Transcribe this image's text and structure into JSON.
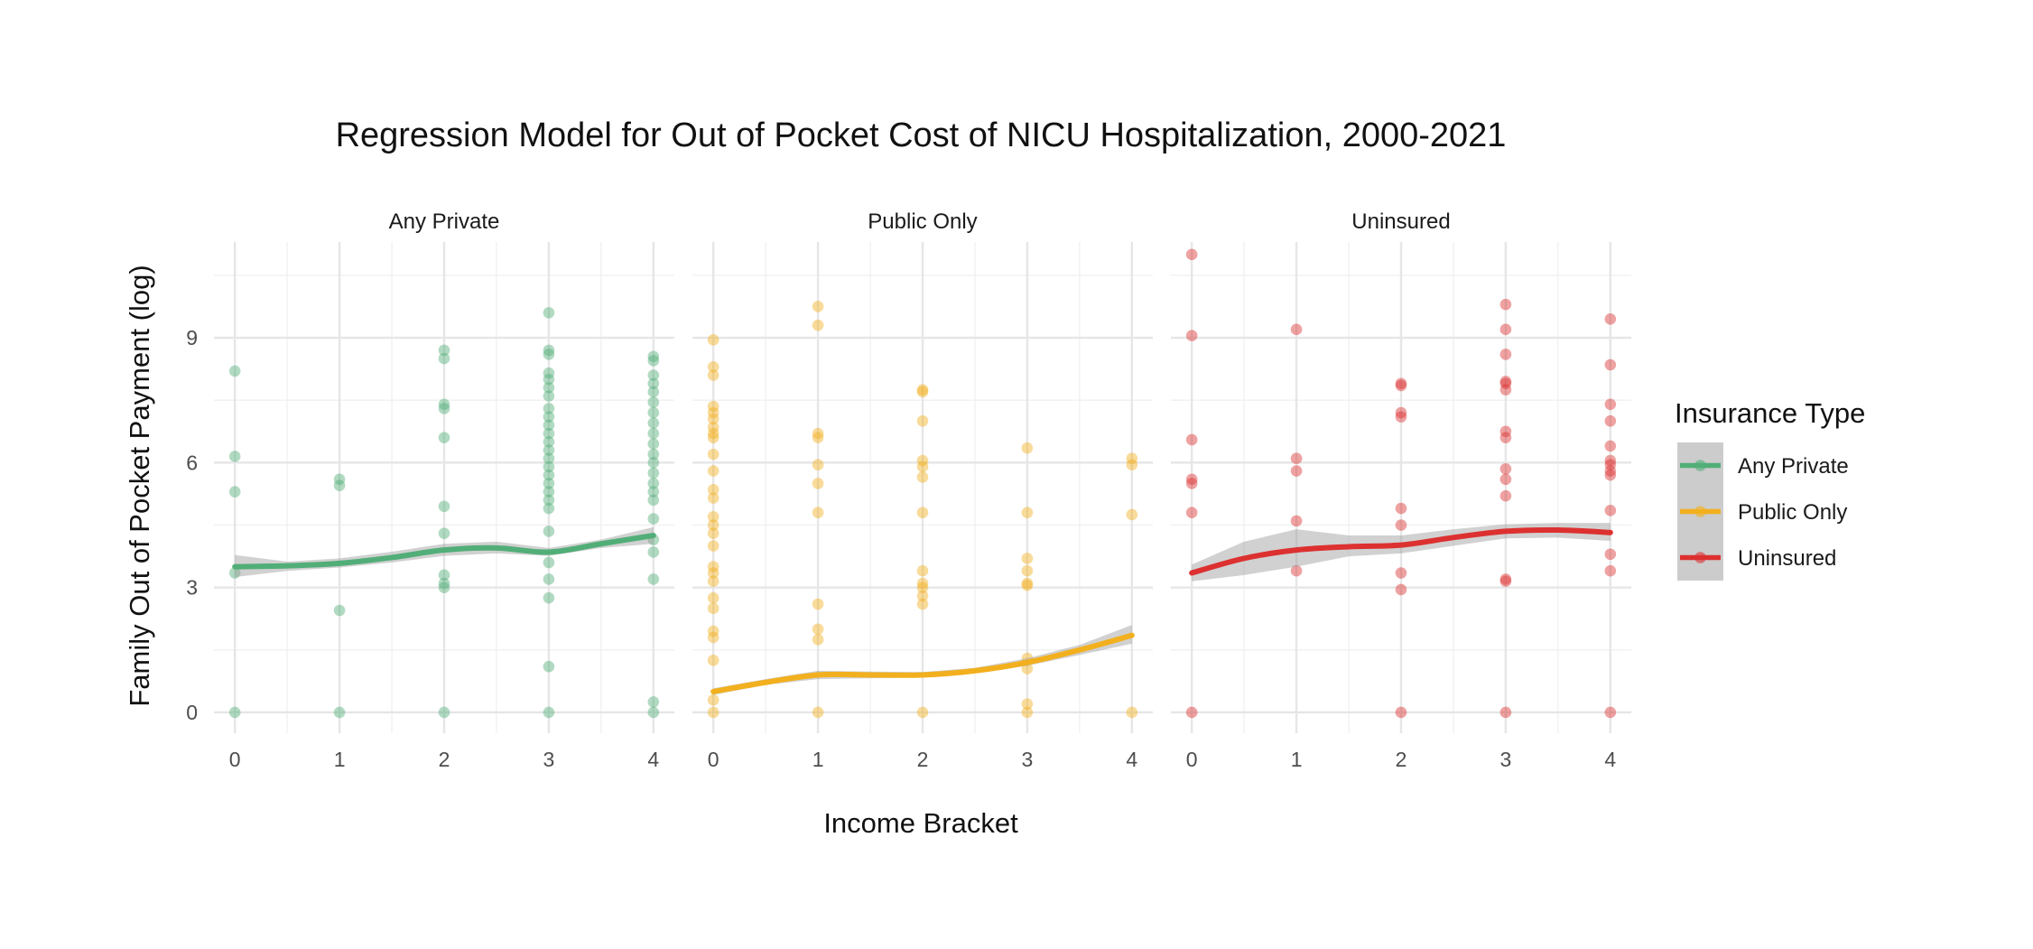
{
  "chart_data": {
    "type": "scatter",
    "title": "Regression Model for Out of Pocket Cost of NICU Hospitalization, 2000-2021",
    "xlabel": "Income Bracket",
    "ylabel": "Family Out of Pocket Payment (log)",
    "xlim": [
      -0.2,
      4.2
    ],
    "ylim": [
      -0.5,
      11.3
    ],
    "x_ticks": [
      0,
      1,
      2,
      3,
      4
    ],
    "y_ticks": [
      0,
      3,
      6,
      9
    ],
    "grid": true,
    "legend": {
      "title": "Insurance Type",
      "position": "right",
      "entries": [
        "Any Private",
        "Public Only",
        "Uninsured"
      ]
    },
    "panels": [
      {
        "name": "Any Private",
        "color": "#52AE78",
        "points": [
          [
            0,
            0
          ],
          [
            0,
            3.35
          ],
          [
            0,
            5.3
          ],
          [
            0,
            6.15
          ],
          [
            0,
            8.2
          ],
          [
            1,
            0
          ],
          [
            1,
            2.45
          ],
          [
            1,
            5.45
          ],
          [
            1,
            5.6
          ],
          [
            2,
            0
          ],
          [
            2,
            3.0
          ],
          [
            2,
            3.1
          ],
          [
            2,
            3.3
          ],
          [
            2,
            4.3
          ],
          [
            2,
            4.95
          ],
          [
            2,
            6.6
          ],
          [
            2,
            7.3
          ],
          [
            2,
            7.4
          ],
          [
            2,
            8.5
          ],
          [
            2,
            8.7
          ],
          [
            3,
            0
          ],
          [
            3,
            1.1
          ],
          [
            3,
            2.75
          ],
          [
            3,
            3.2
          ],
          [
            3,
            3.6
          ],
          [
            3,
            4.35
          ],
          [
            3,
            4.9
          ],
          [
            3,
            5.1
          ],
          [
            3,
            5.3
          ],
          [
            3,
            5.5
          ],
          [
            3,
            5.7
          ],
          [
            3,
            5.9
          ],
          [
            3,
            6.1
          ],
          [
            3,
            6.3
          ],
          [
            3,
            6.5
          ],
          [
            3,
            6.7
          ],
          [
            3,
            6.9
          ],
          [
            3,
            7.1
          ],
          [
            3,
            7.3
          ],
          [
            3,
            7.6
          ],
          [
            3,
            7.8
          ],
          [
            3,
            8.0
          ],
          [
            3,
            8.15
          ],
          [
            3,
            8.6
          ],
          [
            3,
            8.7
          ],
          [
            3,
            9.6
          ],
          [
            4,
            0
          ],
          [
            4,
            0.25
          ],
          [
            4,
            3.2
          ],
          [
            4,
            3.85
          ],
          [
            4,
            4.15
          ],
          [
            4,
            4.65
          ],
          [
            4,
            5.1
          ],
          [
            4,
            5.3
          ],
          [
            4,
            5.5
          ],
          [
            4,
            5.75
          ],
          [
            4,
            6.0
          ],
          [
            4,
            6.2
          ],
          [
            4,
            6.45
          ],
          [
            4,
            6.7
          ],
          [
            4,
            6.95
          ],
          [
            4,
            7.2
          ],
          [
            4,
            7.45
          ],
          [
            4,
            7.7
          ],
          [
            4,
            7.9
          ],
          [
            4,
            8.1
          ],
          [
            4,
            8.45
          ],
          [
            4,
            8.55
          ]
        ],
        "smooth": [
          [
            0,
            3.5
          ],
          [
            0.5,
            3.52
          ],
          [
            1,
            3.58
          ],
          [
            1.5,
            3.72
          ],
          [
            2,
            3.9
          ],
          [
            2.5,
            3.95
          ],
          [
            3,
            3.85
          ],
          [
            3.5,
            4.05
          ],
          [
            4,
            4.25
          ]
        ],
        "band": [
          [
            0,
            3.25,
            3.78
          ],
          [
            0.5,
            3.4,
            3.62
          ],
          [
            1,
            3.48,
            3.7
          ],
          [
            1.5,
            3.6,
            3.86
          ],
          [
            2,
            3.76,
            4.05
          ],
          [
            2.5,
            3.82,
            4.1
          ],
          [
            3,
            3.76,
            3.95
          ],
          [
            3.5,
            3.95,
            4.15
          ],
          [
            4,
            4.05,
            4.45
          ]
        ]
      },
      {
        "name": "Public Only",
        "color": "#F2B01E",
        "points": [
          [
            0,
            0
          ],
          [
            0,
            0.3
          ],
          [
            0,
            1.25
          ],
          [
            0,
            1.8
          ],
          [
            0,
            1.95
          ],
          [
            0,
            2.5
          ],
          [
            0,
            2.75
          ],
          [
            0,
            3.15
          ],
          [
            0,
            3.35
          ],
          [
            0,
            3.5
          ],
          [
            0,
            4.0
          ],
          [
            0,
            4.3
          ],
          [
            0,
            4.5
          ],
          [
            0,
            4.7
          ],
          [
            0,
            5.15
          ],
          [
            0,
            5.35
          ],
          [
            0,
            5.8
          ],
          [
            0,
            6.2
          ],
          [
            0,
            6.6
          ],
          [
            0,
            6.7
          ],
          [
            0,
            6.85
          ],
          [
            0,
            7.05
          ],
          [
            0,
            7.2
          ],
          [
            0,
            7.35
          ],
          [
            0,
            8.1
          ],
          [
            0,
            8.3
          ],
          [
            0,
            8.95
          ],
          [
            1,
            0
          ],
          [
            1,
            1.75
          ],
          [
            1,
            2.0
          ],
          [
            1,
            2.6
          ],
          [
            1,
            4.8
          ],
          [
            1,
            5.5
          ],
          [
            1,
            5.95
          ],
          [
            1,
            6.6
          ],
          [
            1,
            6.7
          ],
          [
            1,
            9.3
          ],
          [
            1,
            9.75
          ],
          [
            2,
            0
          ],
          [
            2,
            2.6
          ],
          [
            2,
            2.8
          ],
          [
            2,
            3.0
          ],
          [
            2,
            3.1
          ],
          [
            2,
            3.4
          ],
          [
            2,
            4.8
          ],
          [
            2,
            5.65
          ],
          [
            2,
            5.9
          ],
          [
            2,
            6.05
          ],
          [
            2,
            7.0
          ],
          [
            2,
            7.7
          ],
          [
            2,
            7.75
          ],
          [
            3,
            0
          ],
          [
            3,
            0.2
          ],
          [
            3,
            1.05
          ],
          [
            3,
            1.3
          ],
          [
            3,
            3.05
          ],
          [
            3,
            3.1
          ],
          [
            3,
            3.4
          ],
          [
            3,
            3.7
          ],
          [
            3,
            4.8
          ],
          [
            3,
            6.35
          ],
          [
            4,
            0
          ],
          [
            4,
            4.75
          ],
          [
            4,
            5.95
          ],
          [
            4,
            6.1
          ]
        ],
        "smooth": [
          [
            0,
            0.5
          ],
          [
            0.5,
            0.72
          ],
          [
            1,
            0.9
          ],
          [
            1.5,
            0.9
          ],
          [
            2,
            0.9
          ],
          [
            2.5,
            1.0
          ],
          [
            3,
            1.2
          ],
          [
            3.5,
            1.5
          ],
          [
            4,
            1.85
          ]
        ],
        "band": [
          [
            0,
            0.42,
            0.58
          ],
          [
            0.5,
            0.66,
            0.8
          ],
          [
            1,
            0.8,
            1.0
          ],
          [
            1.5,
            0.82,
            0.98
          ],
          [
            2,
            0.84,
            0.97
          ],
          [
            2.5,
            0.94,
            1.07
          ],
          [
            3,
            1.12,
            1.3
          ],
          [
            3.5,
            1.38,
            1.62
          ],
          [
            4,
            1.65,
            2.1
          ]
        ]
      },
      {
        "name": "Uninsured",
        "color": "#DC3130",
        "points": [
          [
            0,
            0
          ],
          [
            0,
            4.8
          ],
          [
            0,
            5.5
          ],
          [
            0,
            5.6
          ],
          [
            0,
            6.55
          ],
          [
            0,
            9.05
          ],
          [
            0,
            11.0
          ],
          [
            1,
            3.4
          ],
          [
            1,
            4.6
          ],
          [
            1,
            5.8
          ],
          [
            1,
            6.1
          ],
          [
            1,
            9.2
          ],
          [
            2,
            0
          ],
          [
            2,
            2.95
          ],
          [
            2,
            3.35
          ],
          [
            2,
            4.5
          ],
          [
            2,
            4.9
          ],
          [
            2,
            7.1
          ],
          [
            2,
            7.2
          ],
          [
            2,
            7.85
          ],
          [
            2,
            7.9
          ],
          [
            3,
            0
          ],
          [
            3,
            3.15
          ],
          [
            3,
            3.2
          ],
          [
            3,
            5.2
          ],
          [
            3,
            5.6
          ],
          [
            3,
            5.85
          ],
          [
            3,
            6.6
          ],
          [
            3,
            6.75
          ],
          [
            3,
            7.75
          ],
          [
            3,
            7.9
          ],
          [
            3,
            7.95
          ],
          [
            3,
            8.6
          ],
          [
            3,
            9.2
          ],
          [
            3,
            9.8
          ],
          [
            4,
            0
          ],
          [
            4,
            3.4
          ],
          [
            4,
            3.8
          ],
          [
            4,
            4.85
          ],
          [
            4,
            5.7
          ],
          [
            4,
            5.8
          ],
          [
            4,
            5.95
          ],
          [
            4,
            6.05
          ],
          [
            4,
            6.4
          ],
          [
            4,
            7.0
          ],
          [
            4,
            7.4
          ],
          [
            4,
            8.35
          ],
          [
            4,
            9.45
          ]
        ],
        "smooth": [
          [
            0,
            3.35
          ],
          [
            0.5,
            3.7
          ],
          [
            1,
            3.9
          ],
          [
            1.5,
            3.98
          ],
          [
            2,
            4.02
          ],
          [
            2.5,
            4.2
          ],
          [
            3,
            4.35
          ],
          [
            3.5,
            4.38
          ],
          [
            4,
            4.32
          ]
        ],
        "band": [
          [
            0,
            3.15,
            3.55
          ],
          [
            0.5,
            3.3,
            4.1
          ],
          [
            1,
            3.5,
            4.4
          ],
          [
            1.5,
            3.75,
            4.25
          ],
          [
            2,
            3.82,
            4.25
          ],
          [
            2.5,
            4.0,
            4.4
          ],
          [
            3,
            4.18,
            4.52
          ],
          [
            3.5,
            4.2,
            4.55
          ],
          [
            4,
            4.12,
            4.55
          ]
        ]
      }
    ]
  }
}
